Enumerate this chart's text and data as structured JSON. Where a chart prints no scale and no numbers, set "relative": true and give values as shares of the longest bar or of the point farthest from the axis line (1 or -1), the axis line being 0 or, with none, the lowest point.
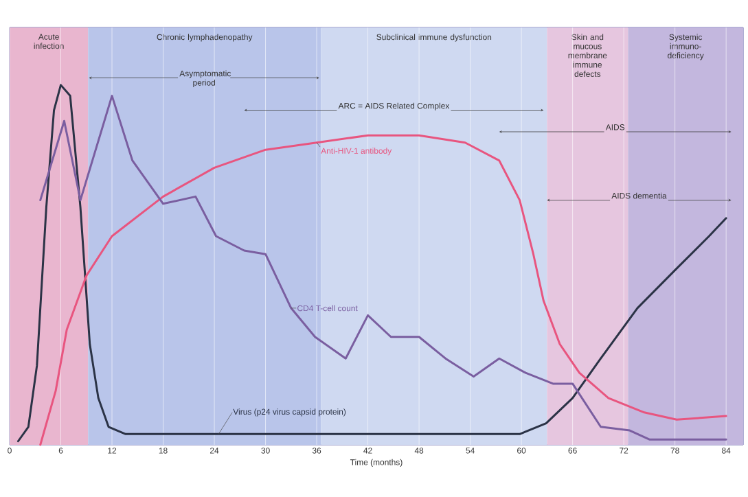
{
  "chart_data": {
    "type": "line",
    "relative": true,
    "xlabel": "Time (months)",
    "xlim": [
      0,
      86
    ],
    "xticks": [
      0,
      6,
      12,
      18,
      24,
      30,
      36,
      42,
      48,
      54,
      60,
      66,
      72,
      78,
      84
    ],
    "grid": "x",
    "line_style": "solid",
    "marker": "none",
    "series": [
      {
        "name": "Virus (p24 virus capsid protein)",
        "color": "#2b3346",
        "x": [
          1,
          2.2,
          3.2,
          4.3,
          5.2,
          6,
          7.1,
          8.3,
          9.4,
          10.4,
          11.6,
          13.6,
          17.6,
          59.8,
          62.9,
          66,
          69.3,
          73.6,
          78.2,
          82,
          84
        ],
        "values": [
          0.01,
          0.05,
          0.22,
          0.66,
          0.93,
          1.0,
          0.97,
          0.66,
          0.28,
          0.13,
          0.05,
          0.03,
          0.03,
          0.03,
          0.06,
          0.13,
          0.24,
          0.38,
          0.49,
          0.58,
          0.63
        ]
      },
      {
        "name": "Anti-HIV-1 antibody",
        "color": "#e8557f",
        "x": [
          3.6,
          5.4,
          6.7,
          9,
          12,
          18,
          24,
          30,
          36,
          42,
          48,
          53.4,
          57.4,
          59.8,
          61.4,
          62.6,
          64.5,
          66.8,
          70.2,
          74.4,
          78.2,
          84
        ],
        "values": [
          0,
          0.15,
          0.32,
          0.47,
          0.58,
          0.69,
          0.77,
          0.82,
          0.84,
          0.86,
          0.86,
          0.84,
          0.79,
          0.68,
          0.53,
          0.4,
          0.28,
          0.2,
          0.13,
          0.09,
          0.07,
          0.08
        ]
      },
      {
        "name": "CD4 T-cell count",
        "color": "#7a5ea0",
        "x": [
          3.6,
          6.4,
          8.3,
          12,
          14.4,
          18,
          21.8,
          24.2,
          27.5,
          30,
          33,
          35.8,
          39.4,
          42,
          44.7,
          48,
          51.1,
          54.4,
          57.4,
          60.5,
          63.7,
          66,
          69.3,
          72.7,
          75,
          84
        ],
        "values": [
          0.68,
          0.9,
          0.68,
          0.97,
          0.79,
          0.67,
          0.69,
          0.58,
          0.54,
          0.53,
          0.38,
          0.3,
          0.24,
          0.36,
          0.3,
          0.3,
          0.24,
          0.19,
          0.24,
          0.2,
          0.17,
          0.17,
          0.05,
          0.04,
          0.015,
          0.015
        ]
      }
    ],
    "bands": [
      {
        "axis": "x",
        "from": 0,
        "to": 9.2,
        "label": "Acute infection",
        "color": "#e9b6cf"
      },
      {
        "axis": "x",
        "from": 9.2,
        "to": 36.5,
        "label": "Chronic lymphadenopathy",
        "color": "#b9c5ea"
      },
      {
        "axis": "x",
        "from": 36.5,
        "to": 63,
        "label": "Subclinical immune dysfunction",
        "color": "#cfd9f1"
      },
      {
        "axis": "x",
        "from": 63,
        "to": 72.5,
        "label": "Skin and mucous membrane immune defects",
        "color": "#e6c6df"
      },
      {
        "axis": "x",
        "from": 72.5,
        "to": 86,
        "label": "Systemic immuno-deficiency",
        "color": "#c3b7de"
      }
    ],
    "annotations": [
      "Asymptomatic period",
      "ARC = AIDS Related Complex",
      "AIDS",
      "AIDS dementia"
    ]
  }
}
